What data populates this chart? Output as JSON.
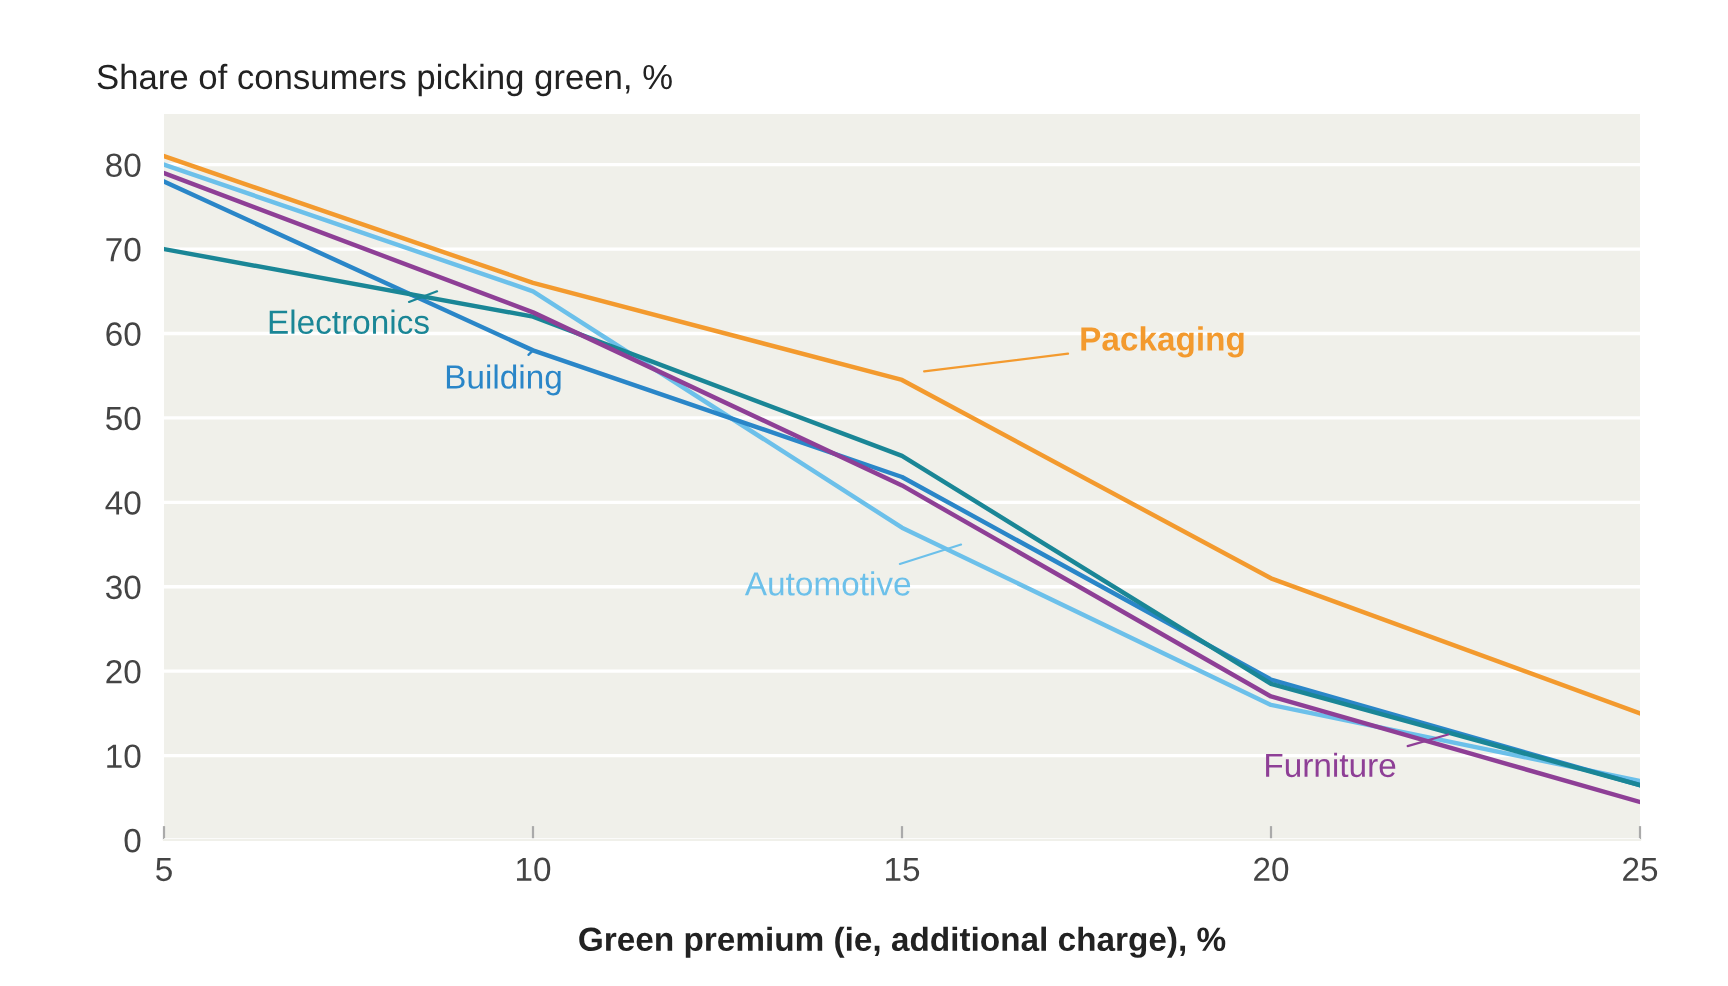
{
  "chart_data": {
    "type": "line",
    "ylabel": "Share of consumers picking green, %",
    "xlabel": "Green premium (ie, additional charge), %",
    "x": [
      5,
      10,
      15,
      20,
      25
    ],
    "xlim": [
      5,
      25
    ],
    "xticks": [
      5,
      10,
      15,
      20,
      25
    ],
    "ylim": [
      0,
      86
    ],
    "yticks": [
      0,
      10,
      20,
      30,
      40,
      50,
      60,
      70,
      80
    ],
    "grid": "y",
    "marker": "none",
    "line_style": "solid",
    "legend": "center",
    "series": [
      {
        "name": "Packaging",
        "color": "#f39a2e",
        "values": [
          81,
          66,
          54.5,
          31,
          15
        ]
      },
      {
        "name": "Automotive",
        "color": "#6cc0ea",
        "values": [
          80,
          65,
          37,
          16,
          7
        ]
      },
      {
        "name": "Building",
        "color": "#2a86c8",
        "values": [
          78,
          58,
          43,
          19,
          6.5
        ]
      },
      {
        "name": "Electronics",
        "color": "#1a8696",
        "values": [
          70,
          62,
          45.5,
          18.5,
          6.5
        ]
      },
      {
        "name": "Furniture",
        "color": "#8e3f96",
        "values": [
          79,
          62.5,
          42,
          17,
          4.5
        ]
      }
    ]
  }
}
